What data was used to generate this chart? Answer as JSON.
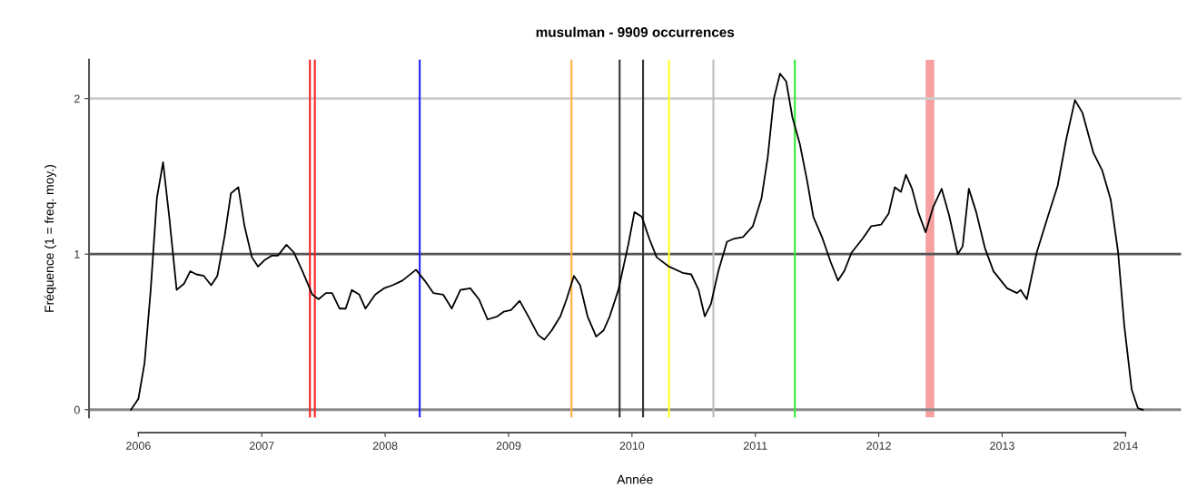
{
  "chart_data": {
    "type": "line",
    "title": "musulman - 9909 occurrences",
    "xlabel": "Année",
    "ylabel": "Fréquence (1 = freq. moy.)",
    "series": [
      {
        "color": "#000000",
        "x": [
          2005.94,
          2006.0,
          2006.05,
          2006.1,
          2006.15,
          2006.2,
          2006.25,
          2006.31,
          2006.37,
          2006.42,
          2006.47,
          2006.53,
          2006.59,
          2006.64,
          2006.7,
          2006.75,
          2006.81,
          2006.86,
          2006.92,
          2006.97,
          2007.02,
          2007.08,
          2007.13,
          2007.2,
          2007.26,
          2007.33,
          2007.41,
          2007.46,
          2007.52,
          2007.57,
          2007.63,
          2007.68,
          2007.73,
          2007.79,
          2007.84,
          2007.92,
          2007.99,
          2008.06,
          2008.14,
          2008.25,
          2008.32,
          2008.39,
          2008.47,
          2008.54,
          2008.61,
          2008.69,
          2008.76,
          2008.83,
          2008.91,
          2008.96,
          2009.02,
          2009.09,
          2009.16,
          2009.24,
          2009.29,
          2009.35,
          2009.42,
          2009.47,
          2009.53,
          2009.58,
          2009.64,
          2009.71,
          2009.77,
          2009.82,
          2009.89,
          2009.97,
          2010.02,
          2010.08,
          2010.14,
          2010.2,
          2010.3,
          2010.41,
          2010.48,
          2010.54,
          2010.59,
          2010.64,
          2010.7,
          2010.77,
          2010.83,
          2010.9,
          2010.98,
          2011.05,
          2011.1,
          2011.15,
          2011.2,
          2011.25,
          2011.3,
          2011.36,
          2011.42,
          2011.47,
          2011.54,
          2011.61,
          2011.67,
          2011.72,
          2011.78,
          2011.87,
          2011.94,
          2012.02,
          2012.08,
          2012.13,
          2012.18,
          2012.22,
          2012.27,
          2012.32,
          2012.38,
          2012.44,
          2012.51,
          2012.57,
          2012.64,
          2012.68,
          2012.73,
          2012.79,
          2012.86,
          2012.93,
          2013.04,
          2013.12,
          2013.15,
          2013.2,
          2013.28,
          2013.37,
          2013.45,
          2013.52,
          2013.59,
          2013.65,
          2013.74,
          2013.81,
          2013.88,
          2013.94,
          2013.99,
          2014.05,
          2014.1,
          2014.14
        ],
        "values": [
          0,
          0.07,
          0.3,
          0.77,
          1.36,
          1.59,
          1.24,
          0.77,
          0.81,
          0.89,
          0.87,
          0.86,
          0.8,
          0.86,
          1.12,
          1.39,
          1.43,
          1.18,
          0.98,
          0.92,
          0.96,
          0.99,
          0.99,
          1.06,
          1.01,
          0.89,
          0.74,
          0.71,
          0.75,
          0.75,
          0.65,
          0.65,
          0.77,
          0.74,
          0.65,
          0.74,
          0.78,
          0.8,
          0.83,
          0.9,
          0.83,
          0.75,
          0.74,
          0.65,
          0.77,
          0.78,
          0.71,
          0.58,
          0.6,
          0.63,
          0.64,
          0.7,
          0.6,
          0.48,
          0.45,
          0.51,
          0.6,
          0.71,
          0.86,
          0.8,
          0.6,
          0.47,
          0.51,
          0.6,
          0.77,
          1.06,
          1.27,
          1.24,
          1.1,
          0.98,
          0.92,
          0.88,
          0.87,
          0.77,
          0.6,
          0.68,
          0.89,
          1.08,
          1.1,
          1.11,
          1.18,
          1.36,
          1.62,
          2.0,
          2.16,
          2.11,
          1.88,
          1.71,
          1.47,
          1.24,
          1.11,
          0.95,
          0.83,
          0.89,
          1.01,
          1.1,
          1.18,
          1.19,
          1.26,
          1.43,
          1.4,
          1.51,
          1.42,
          1.27,
          1.14,
          1.3,
          1.42,
          1.25,
          1.0,
          1.05,
          1.42,
          1.27,
          1.04,
          0.89,
          0.78,
          0.75,
          0.77,
          0.71,
          1.01,
          1.24,
          1.44,
          1.74,
          1.99,
          1.91,
          1.65,
          1.54,
          1.35,
          1.01,
          0.54,
          0.13,
          0.01,
          0
        ]
      }
    ],
    "xlim": [
      2005.6,
      2014.45
    ],
    "ylim": [
      -0.05,
      2.25
    ],
    "xticks": [
      2006,
      2007,
      2008,
      2009,
      2010,
      2011,
      2012,
      2013,
      2014
    ],
    "yticks": [
      0,
      1,
      2
    ],
    "ref_lines": [
      {
        "axis": "y",
        "value": 0,
        "color": "#888888"
      },
      {
        "axis": "y",
        "value": 1,
        "color": "#555555"
      },
      {
        "axis": "y",
        "value": 2,
        "color": "#cccccc"
      },
      {
        "axis": "x",
        "value": 2007.39,
        "color": "#ff2020"
      },
      {
        "axis": "x",
        "value": 2007.43,
        "color": "#ff2020"
      },
      {
        "axis": "x",
        "value": 2008.28,
        "color": "#2020ff"
      },
      {
        "axis": "x",
        "value": 2009.51,
        "color": "#ffb040"
      },
      {
        "axis": "x",
        "value": 2009.9,
        "color": "#333333"
      },
      {
        "axis": "x",
        "value": 2010.09,
        "color": "#333333"
      },
      {
        "axis": "x",
        "value": 2010.3,
        "color": "#ffff20"
      },
      {
        "axis": "x",
        "value": 2010.66,
        "color": "#bbbbbb"
      },
      {
        "axis": "x",
        "value": 2011.32,
        "color": "#30ee30"
      }
    ],
    "bands": [
      {
        "axis": "x",
        "from": 2012.38,
        "to": 2012.45,
        "color": "#f6a0a0"
      }
    ],
    "grid": false,
    "marker": "none",
    "line_style": "solid"
  }
}
